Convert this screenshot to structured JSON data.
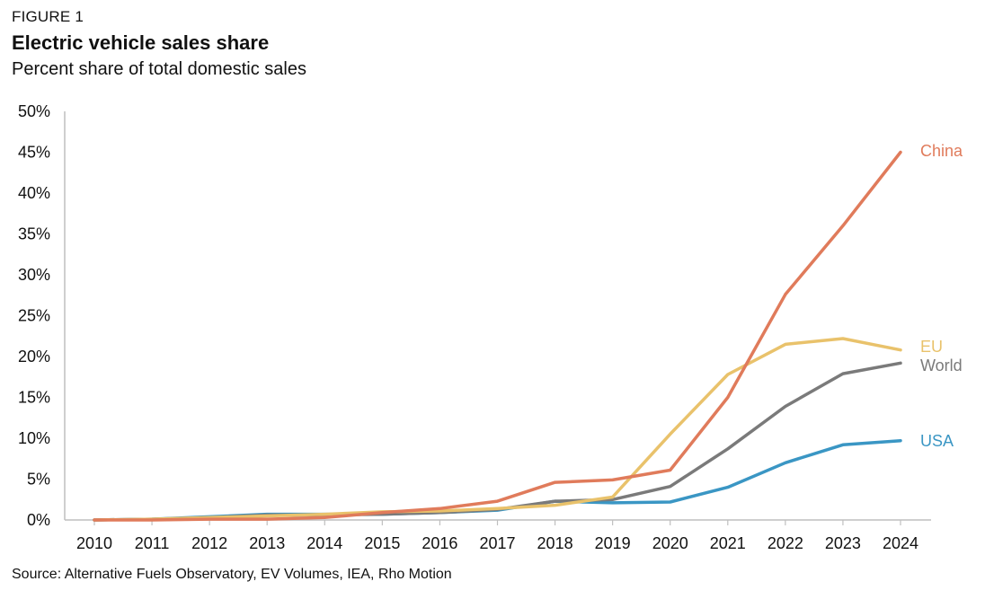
{
  "header": {
    "figure_label": "FIGURE 1",
    "title": "Electric vehicle sales share",
    "subtitle": "Percent share of total domestic sales"
  },
  "footer": {
    "source": "Source: Alternative Fuels Observatory, EV Volumes, IEA, Rho Motion"
  },
  "chart_data": {
    "type": "line",
    "title": "Electric vehicle sales share",
    "subtitle": "Percent share of total domestic sales",
    "xlabel": "",
    "ylabel": "",
    "x": [
      2010,
      2011,
      2012,
      2013,
      2014,
      2015,
      2016,
      2017,
      2018,
      2019,
      2020,
      2021,
      2022,
      2023,
      2024
    ],
    "ylim": [
      0,
      50
    ],
    "yticks": [
      0,
      5,
      10,
      15,
      20,
      25,
      30,
      35,
      40,
      45,
      50
    ],
    "ytick_labels": [
      "0%",
      "5%",
      "10%",
      "15%",
      "20%",
      "25%",
      "30%",
      "35%",
      "40%",
      "45%",
      "50%"
    ],
    "grid": false,
    "legend": "direct labels at line ends (right)",
    "series": [
      {
        "name": "China",
        "color": "#e07b5b",
        "values": [
          0.0,
          0.0,
          0.1,
          0.1,
          0.3,
          0.9,
          1.4,
          2.3,
          4.6,
          4.9,
          6.1,
          15.0,
          27.6,
          36.0,
          45.0
        ]
      },
      {
        "name": "EU",
        "color": "#e9c26b",
        "values": [
          0.0,
          0.1,
          0.3,
          0.5,
          0.7,
          1.0,
          1.1,
          1.4,
          1.8,
          2.8,
          10.5,
          17.8,
          21.5,
          22.2,
          20.8
        ]
      },
      {
        "name": "World",
        "color": "#7a7a7a",
        "values": [
          0.0,
          0.1,
          0.3,
          0.6,
          0.6,
          0.7,
          0.9,
          1.3,
          2.3,
          2.5,
          4.1,
          8.7,
          13.9,
          17.9,
          19.2
        ]
      },
      {
        "name": "USA",
        "color": "#3a96c4",
        "values": [
          0.0,
          0.1,
          0.4,
          0.7,
          0.7,
          0.7,
          0.9,
          1.2,
          2.3,
          2.1,
          2.2,
          4.0,
          7.0,
          9.2,
          9.7
        ]
      }
    ]
  }
}
